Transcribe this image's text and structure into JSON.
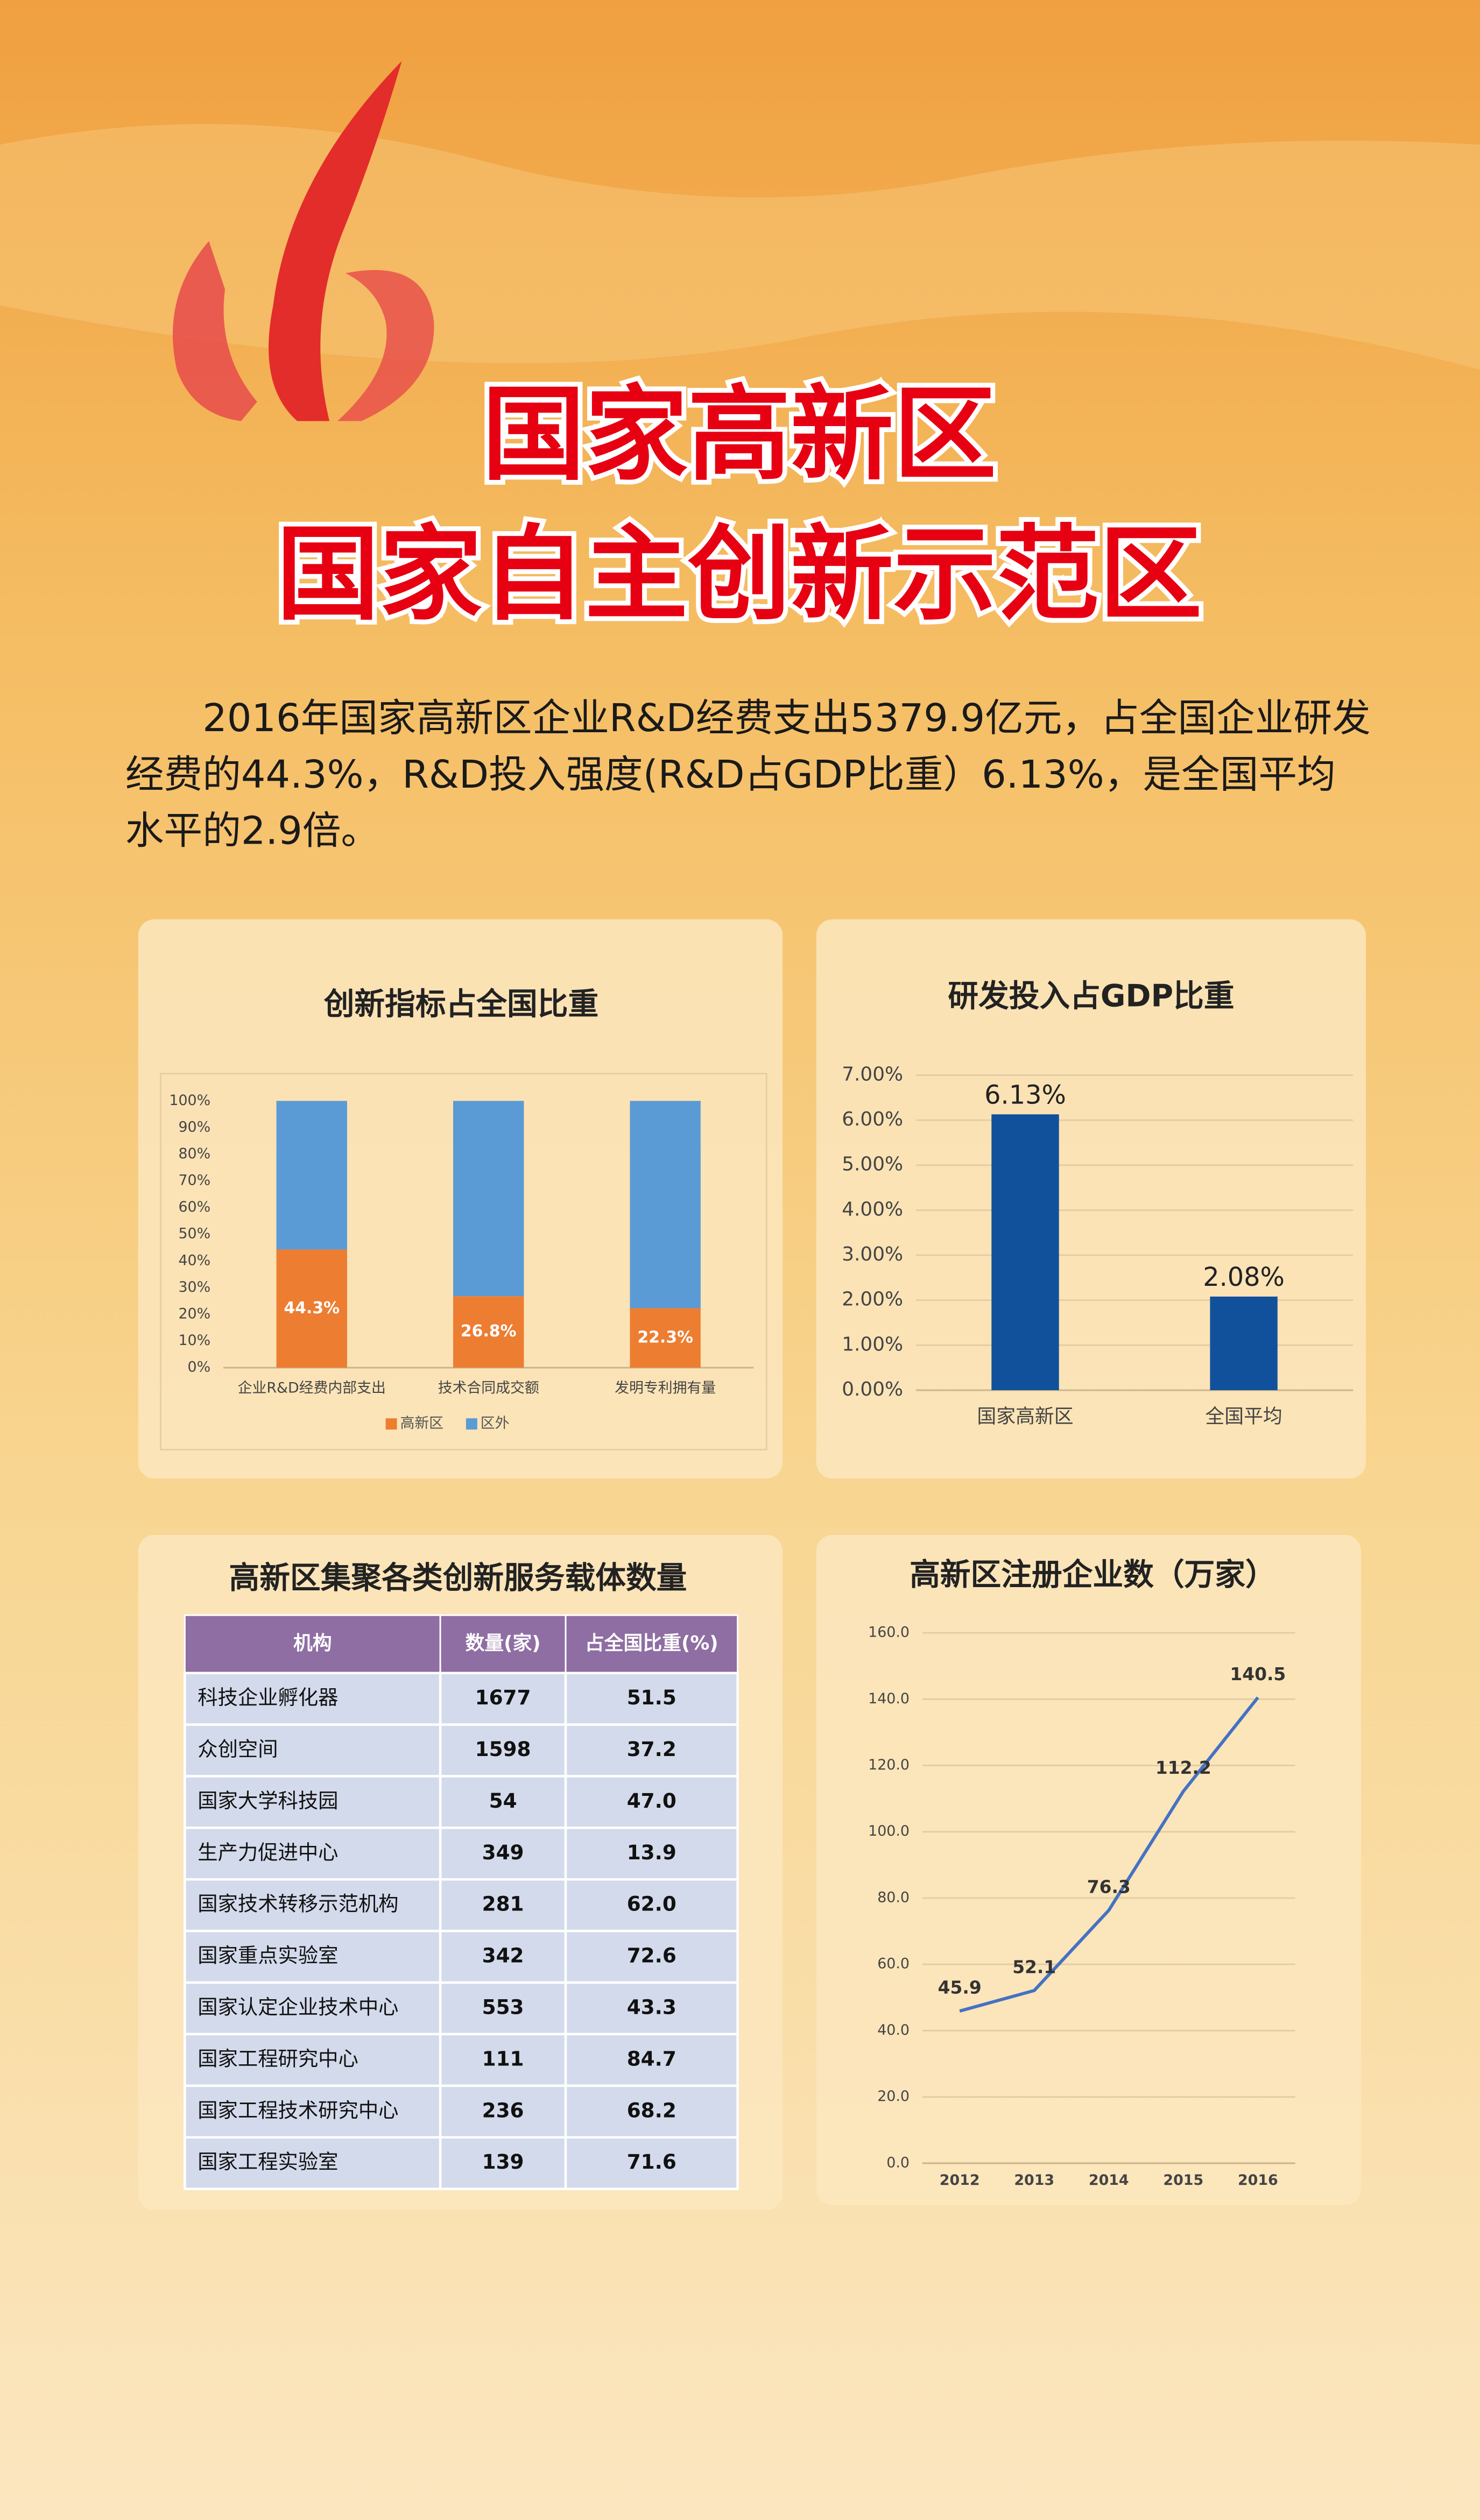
{
  "title_lines": [
    "国家高新区",
    "国家自主创新示范区"
  ],
  "intro": "2016年国家高新区企业R&D经费支出5379.9亿元，占全国企业研发经费的44.3%，R&D投入强度(R&D占GDP比重）6.13%，是全国平均水平的2.9倍。",
  "chart_data": [
    {
      "type": "stacked_bar",
      "title": "创新指标占全国比重",
      "categories": [
        "企业R&D经费内部支出",
        "技术合同成交额",
        "发明专利拥有量"
      ],
      "series": [
        {
          "name": "高新区",
          "color": "#ed7d31",
          "values": [
            44.3,
            26.8,
            22.3
          ],
          "value_labels": [
            "44.3%",
            "26.8%",
            "22.3%"
          ]
        },
        {
          "name": "区外",
          "color": "#5b9bd5",
          "values": [
            55.7,
            73.2,
            77.7
          ]
        }
      ],
      "ylim": [
        0,
        100
      ],
      "yticks": [
        {
          "value": 0,
          "label": "0%"
        },
        {
          "value": 10,
          "label": "10%"
        },
        {
          "value": 20,
          "label": "20%"
        },
        {
          "value": 30,
          "label": "30%"
        },
        {
          "value": 40,
          "label": "40%"
        },
        {
          "value": 50,
          "label": "50%"
        },
        {
          "value": 60,
          "label": "60%"
        },
        {
          "value": 70,
          "label": "70%"
        },
        {
          "value": 80,
          "label": "80%"
        },
        {
          "value": 90,
          "label": "90%"
        },
        {
          "value": 100,
          "label": "100%"
        }
      ],
      "grid": false,
      "legend": "bottom"
    },
    {
      "type": "bar",
      "title": "研发投入占GDP比重",
      "categories": [
        "国家高新区",
        "全国平均"
      ],
      "values": [
        6.13,
        2.08
      ],
      "value_labels": [
        "6.13%",
        "2.08%"
      ],
      "color": "#11519c",
      "ylim": [
        0,
        7
      ],
      "yticks": [
        {
          "value": 0,
          "label": "0.00%"
        },
        {
          "value": 1,
          "label": "1.00%"
        },
        {
          "value": 2,
          "label": "2.00%"
        },
        {
          "value": 3,
          "label": "3.00%"
        },
        {
          "value": 4,
          "label": "4.00%"
        },
        {
          "value": 5,
          "label": "5.00%"
        },
        {
          "value": 6,
          "label": "6.00%"
        },
        {
          "value": 7,
          "label": "7.00%"
        }
      ],
      "grid": true
    },
    {
      "type": "line",
      "title": "高新区注册企业数（万家）",
      "categories": [
        "2012",
        "2013",
        "2014",
        "2015",
        "2016"
      ],
      "values": [
        45.9,
        52.1,
        76.3,
        112.2,
        140.5
      ],
      "color": "#4472c4",
      "ylim": [
        0,
        160
      ],
      "yticks": [
        {
          "value": 0,
          "label": "0.0"
        },
        {
          "value": 20,
          "label": "20.0"
        },
        {
          "value": 40,
          "label": "40.0"
        },
        {
          "value": 60,
          "label": "60.0"
        },
        {
          "value": 80,
          "label": "80.0"
        },
        {
          "value": 100,
          "label": "100.0"
        },
        {
          "value": 120,
          "label": "120.0"
        },
        {
          "value": 140,
          "label": "140.0"
        },
        {
          "value": 160,
          "label": "160.0"
        }
      ],
      "grid": true
    }
  ],
  "table": {
    "title": "高新区集聚各类创新服务载体数量",
    "header": [
      "机构",
      "数量(家)",
      "占全国比重(%)"
    ],
    "rows": [
      [
        "科技企业孵化器",
        "1677",
        "51.5"
      ],
      [
        "众创空间",
        "1598",
        "37.2"
      ],
      [
        "国家大学科技园",
        "54",
        "47.0"
      ],
      [
        "生产力促进中心",
        "349",
        "13.9"
      ],
      [
        "国家技术转移示范机构",
        "281",
        "62.0"
      ],
      [
        "国家重点实验室",
        "342",
        "72.6"
      ],
      [
        "国家认定企业技术中心",
        "553",
        "43.3"
      ],
      [
        "国家工程研究中心",
        "111",
        "84.7"
      ],
      [
        "国家工程技术研究中心",
        "236",
        "68.2"
      ],
      [
        "国家工程实验室",
        "139",
        "71.6"
      ]
    ]
  }
}
